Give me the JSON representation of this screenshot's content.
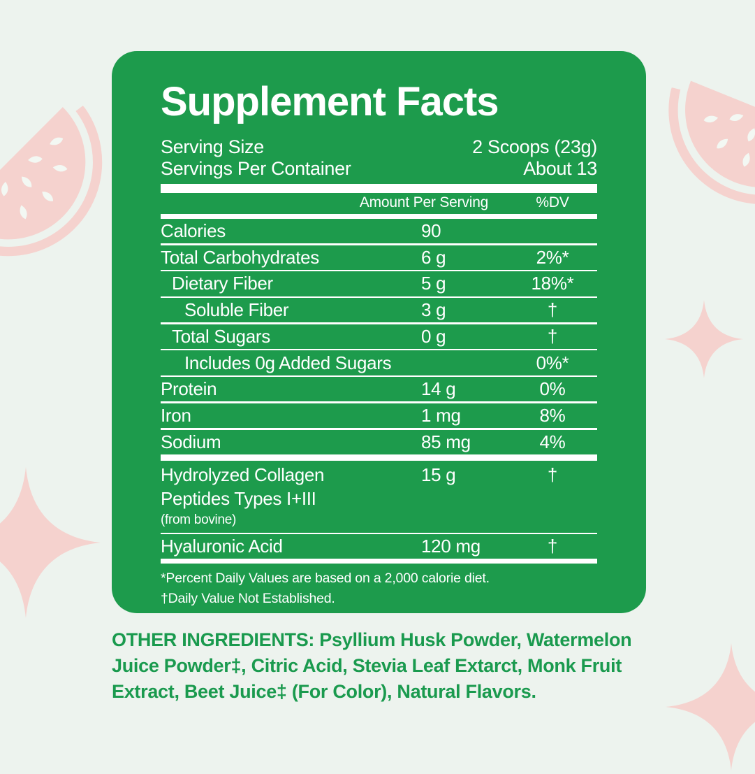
{
  "label": {
    "title": "Supplement Facts",
    "serving_size_label": "Serving Size",
    "serving_size_value": "2 Scoops (23g)",
    "servings_per_container_label": "Servings Per Container",
    "servings_per_container_value": "About 13",
    "amount_header": "Amount Per Serving",
    "dv_header": "%DV",
    "rows": [
      {
        "label": "Calories",
        "amount": "90",
        "dv": "",
        "indent": 0
      },
      {
        "label": "Total Carbohydrates",
        "amount": "6 g",
        "dv": "2%*",
        "indent": 0
      },
      {
        "label": "Dietary Fiber",
        "amount": "5 g",
        "dv": "18%*",
        "indent": 1
      },
      {
        "label": "Soluble Fiber",
        "amount": "3 g",
        "dv": "†",
        "indent": 2
      },
      {
        "label": "Total Sugars",
        "amount": "0 g",
        "dv": "†",
        "indent": 1
      },
      {
        "label": "Includes 0g Added Sugars",
        "amount": "",
        "dv": "0%*",
        "indent": 2
      },
      {
        "label": "Protein",
        "amount": "14 g",
        "dv": "0%",
        "indent": 0
      },
      {
        "label": "Iron",
        "amount": "1 mg",
        "dv": "8%",
        "indent": 0
      },
      {
        "label": "Sodium",
        "amount": "85 mg",
        "dv": "4%",
        "indent": 0,
        "separator_after": "thick"
      },
      {
        "label": "Hydrolyzed Collagen Peptides Types I+III (from bovine)",
        "label_lines": [
          "Hydrolyzed Collagen",
          "Peptides Types I+III"
        ],
        "note": "(from bovine)",
        "amount": "15 g",
        "dv": "†",
        "indent": 0
      },
      {
        "label": "Hyaluronic Acid",
        "amount": "120 mg",
        "dv": "†",
        "indent": 0,
        "separator_after": "medium"
      }
    ],
    "footnotes": [
      "*Percent Daily Values are based on a 2,000 calorie diet.",
      "†Daily Value Not Established."
    ]
  },
  "other_ingredients": {
    "lines": [
      "OTHER INGREDIENTS: Psyllium Husk Powder, Watermelon",
      "Juice Powder‡, Citric Acid, Stevia Leaf Extarct, Monk Fruit",
      "Extract, Beet Juice‡ (For Color), Natural Flavors."
    ]
  },
  "icons": {
    "decorations": [
      "watermelon-slice-icon",
      "sparkle-icon"
    ]
  },
  "colors": {
    "panel_green": "#1d9b4c",
    "ingredients_green": "#1a9a4e",
    "background": "#edf3ee",
    "decoration_pink": "#f5d2ce",
    "text_white": "#ffffff"
  }
}
